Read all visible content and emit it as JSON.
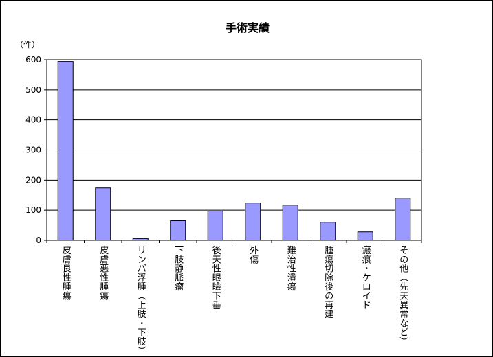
{
  "chart_data": {
    "type": "bar",
    "title": "手術実績",
    "ylabel": "（件）",
    "xlabel": "",
    "ylim": [
      0,
      600
    ],
    "yticks": [
      0,
      100,
      200,
      300,
      400,
      500,
      600
    ],
    "grid": true,
    "legend": "none",
    "bar_color": "#9999ff",
    "categories": [
      "皮膚良性腫瘍",
      "皮膚悪性腫瘍",
      "リンパ浮腫（上肢・下肢）",
      "下肢静脈瘤",
      "後天性眼瞼下垂",
      "外傷",
      "難治性潰瘍",
      "腫瘍切除後の再建",
      "瘢痕・ケロイド",
      "その他（先天異常など）"
    ],
    "values": [
      594,
      174,
      6,
      65,
      97,
      124,
      117,
      60,
      28,
      140
    ]
  }
}
